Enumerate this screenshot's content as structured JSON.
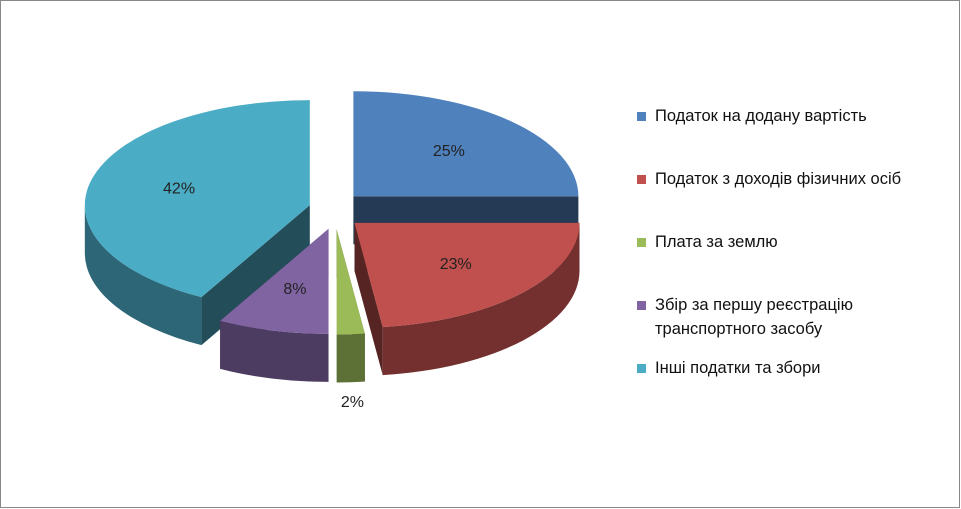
{
  "chart_data": {
    "type": "pie",
    "categories": [
      "Податок на додану вартість",
      "Податок з доходів фізичних осіб",
      "Плата за землю",
      "Збір за першу реєстрацію транспортного засобу",
      "Інші податки та збори"
    ],
    "values": [
      25,
      23,
      2,
      8,
      42
    ],
    "value_labels": [
      "25%",
      "23%",
      "2%",
      "8%",
      "42%"
    ],
    "colors": [
      "#4f81bd",
      "#c0504d",
      "#9bbb59",
      "#8064a2",
      "#4bacc6"
    ],
    "legend": "right"
  }
}
